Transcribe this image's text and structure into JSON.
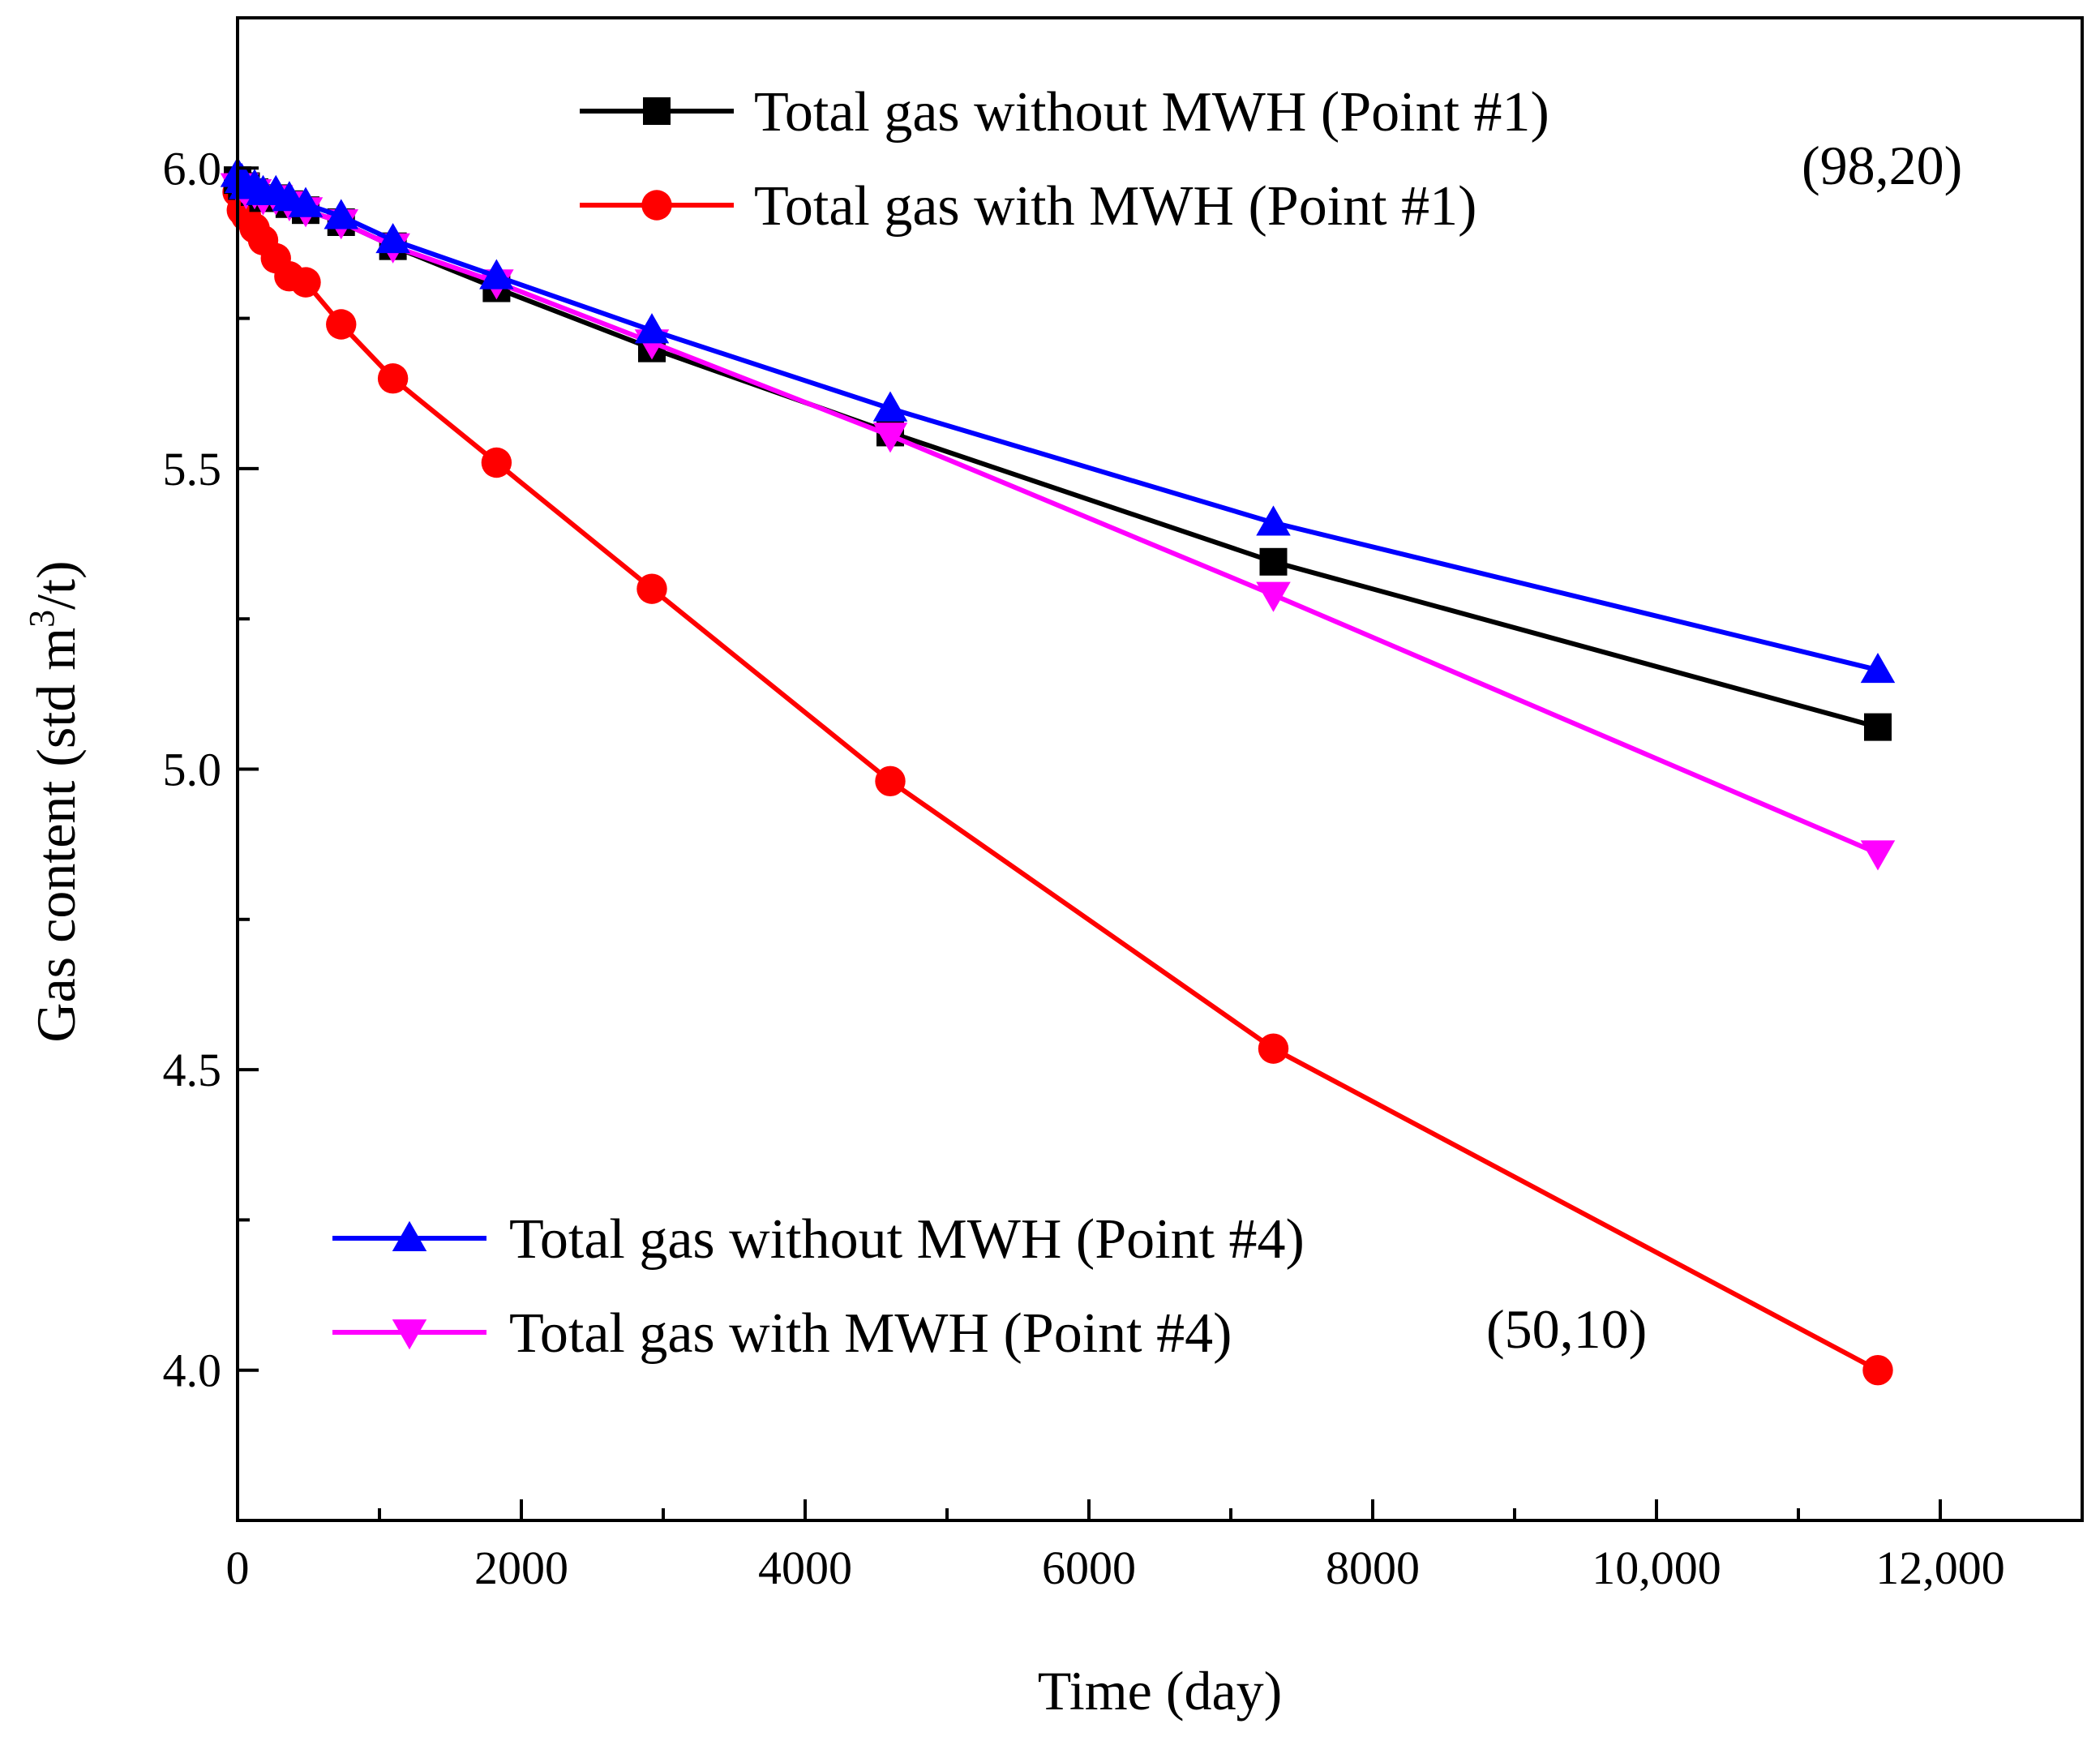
{
  "chart_data": {
    "type": "line",
    "title": "",
    "xlabel": "Time (day)",
    "ylabel": "Gas content (std m³/t)",
    "ylabel_parts": [
      "Gas content (std m",
      "3",
      "/t)"
    ],
    "xlim": [
      0,
      13000
    ],
    "ylim": [
      3.75,
      6.25
    ],
    "xticks": [
      0,
      2000,
      4000,
      6000,
      8000,
      10000,
      12000
    ],
    "xtick_labels": [
      "0",
      "2000",
      "4000",
      "6000",
      "8000",
      "10,000",
      "12,000"
    ],
    "yticks": [
      4.0,
      4.5,
      5.0,
      5.5,
      6.0
    ],
    "ytick_labels": [
      "4.0",
      "4.5",
      "5.0",
      "5.5",
      "6.0"
    ],
    "grid": false,
    "series": [
      {
        "name": "Total gas without MWH (Point #1)",
        "color": "#000000",
        "marker": "square",
        "x": [
          0,
          30,
          60,
          120,
          180,
          270,
          365,
          480,
          730,
          1095,
          1825,
          2920,
          4600,
          7300,
          11560
        ],
        "y": [
          5.98,
          5.97,
          5.97,
          5.96,
          5.95,
          5.95,
          5.94,
          5.93,
          5.91,
          5.87,
          5.8,
          5.7,
          5.56,
          5.345,
          5.07
        ]
      },
      {
        "name": "Total gas with MWH (Point #1)",
        "color": "#ff0000",
        "marker": "circle",
        "x": [
          0,
          30,
          60,
          120,
          180,
          270,
          365,
          480,
          730,
          1095,
          1825,
          2920,
          4600,
          7300,
          11560
        ],
        "y": [
          5.96,
          5.93,
          5.92,
          5.9,
          5.88,
          5.85,
          5.82,
          5.81,
          5.74,
          5.65,
          5.51,
          5.3,
          4.98,
          4.535,
          4.0
        ]
      },
      {
        "name": "Total gas without MWH (Point #4)",
        "color": "#0000ff",
        "marker": "triangle-up",
        "x": [
          0,
          30,
          60,
          120,
          180,
          270,
          365,
          480,
          730,
          1095,
          1825,
          2920,
          4600,
          7300,
          11560
        ],
        "y": [
          5.99,
          5.98,
          5.97,
          5.97,
          5.96,
          5.96,
          5.95,
          5.94,
          5.92,
          5.88,
          5.82,
          5.73,
          5.6,
          5.41,
          5.165
        ]
      },
      {
        "name": "Total gas with MWH (Point #4)",
        "color": "#ff00ff",
        "marker": "triangle-down",
        "x": [
          0,
          30,
          60,
          120,
          180,
          270,
          365,
          480,
          730,
          1095,
          1825,
          2920,
          4600,
          7300,
          11560
        ],
        "y": [
          5.97,
          5.97,
          5.96,
          5.96,
          5.95,
          5.95,
          5.94,
          5.93,
          5.91,
          5.87,
          5.81,
          5.71,
          5.555,
          5.29,
          4.86
        ]
      }
    ],
    "legends": [
      {
        "position": "top-center",
        "series_indices": [
          0,
          1
        ]
      },
      {
        "position": "bottom-left",
        "series_indices": [
          2,
          3
        ]
      }
    ],
    "annotations": [
      {
        "text": "(98,20)",
        "position": "top-right"
      },
      {
        "text": "(50,10)",
        "position": "bottom-right"
      }
    ]
  }
}
